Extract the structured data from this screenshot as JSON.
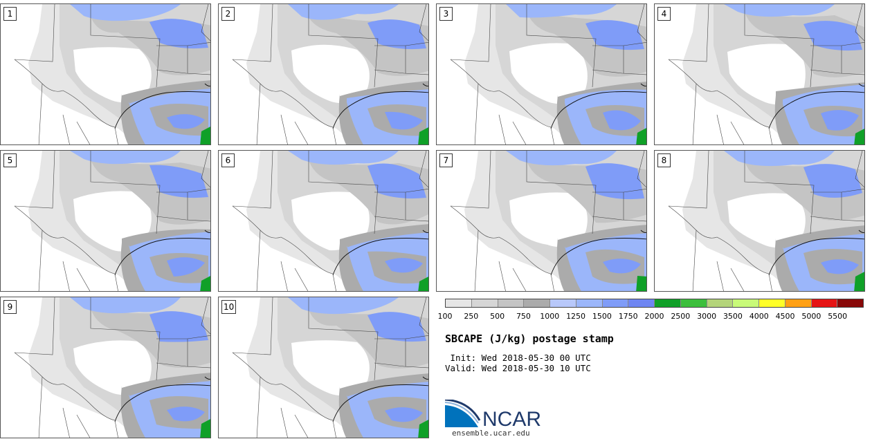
{
  "panels": [
    {
      "label": "1"
    },
    {
      "label": "2"
    },
    {
      "label": "3"
    },
    {
      "label": "4"
    },
    {
      "label": "5"
    },
    {
      "label": "6"
    },
    {
      "label": "7"
    },
    {
      "label": "8"
    },
    {
      "label": "9"
    },
    {
      "label": "10"
    }
  ],
  "colorbar": {
    "colors": [
      "#e6e6e6",
      "#d6d6d6",
      "#c4c4c4",
      "#ababab",
      "#b8c8fa",
      "#9bb6fa",
      "#7f9cf8",
      "#6f86f2",
      "#10a028",
      "#3cbf3c",
      "#b4d47a",
      "#c8fa78",
      "#ffff28",
      "#ffa014",
      "#e61414",
      "#880808"
    ],
    "labels": [
      "100",
      "250",
      "500",
      "750",
      "1000",
      "1250",
      "1500",
      "1750",
      "2000",
      "2500",
      "3000",
      "3500",
      "4000",
      "4500",
      "5000",
      "5500"
    ]
  },
  "title": "SBCAPE (J/kg) postage stamp",
  "init_line": " Init: Wed 2018-05-30 00 UTC",
  "valid_line": "Valid: Wed 2018-05-30 10 UTC",
  "logo": {
    "text": "NCAR",
    "url": "ensemble.ucar.edu",
    "brand_color": "#1f3a6b",
    "accent_color": "#0072bc"
  }
}
